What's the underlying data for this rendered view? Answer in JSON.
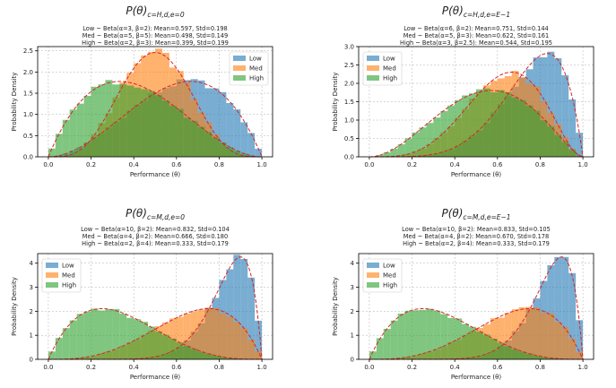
{
  "chart_data": [
    {
      "type": "histogram",
      "title": "P(θ)_{c=H,d,e=0}",
      "title_main": "P(θ)",
      "title_sub": "c=H,d,e=0",
      "subtitle_lines": [
        "Low ~ Beta(α=3, β=2): Mean=0.597, Std=0.198",
        "Med ~ Beta(α=5, β=5): Mean=0.498, Std=0.149",
        "High ~ Beta(α=2, β=3): Mean=0.399, Std=0.199"
      ],
      "xlabel": "Performance (θ)",
      "ylabel": "Probability Density",
      "xlim": [
        -0.05,
        1.05
      ],
      "ylim": [
        0,
        2.6
      ],
      "yticks": [
        "0.0",
        "0.5",
        "1.0",
        "1.5",
        "2.0",
        "2.5"
      ],
      "xticks": [
        "0.0",
        "0.2",
        "0.4",
        "0.6",
        "0.8",
        "1.0"
      ],
      "grid": true,
      "legend_position": "upper-right",
      "series": [
        {
          "name": "Low",
          "color": "#1f77b4",
          "alpha": 3,
          "beta": 2
        },
        {
          "name": "Med",
          "color": "#ff7f0e",
          "alpha": 5,
          "beta": 5
        },
        {
          "name": "High",
          "color": "#2ca02c",
          "alpha": 2,
          "beta": 3
        }
      ]
    },
    {
      "type": "histogram",
      "title": "P(θ)_{c=H,d,e=E−1}",
      "title_main": "P(θ)",
      "title_sub": "c=H,d,e=E−1",
      "subtitle_lines": [
        "Low ~ Beta(α=6, β=2): Mean=0.751, Std=0.144",
        "Med ~ Beta(α=5, β=3): Mean=0.622, Std=0.161",
        "High ~ Beta(α=3, β=2.5): Mean=0.544, Std=0.195"
      ],
      "xlabel": "Performance (θ)",
      "ylabel": "Probability Density",
      "xlim": [
        -0.05,
        1.05
      ],
      "ylim": [
        0,
        3.0
      ],
      "yticks": [
        "0.0",
        "0.5",
        "1.0",
        "1.5",
        "2.0",
        "2.5",
        "3.0"
      ],
      "xticks": [
        "0.0",
        "0.2",
        "0.4",
        "0.6",
        "0.8",
        "1.0"
      ],
      "grid": true,
      "legend_position": "upper-left",
      "series": [
        {
          "name": "Low",
          "color": "#1f77b4",
          "alpha": 6,
          "beta": 2
        },
        {
          "name": "Med",
          "color": "#ff7f0e",
          "alpha": 5,
          "beta": 3
        },
        {
          "name": "High",
          "color": "#2ca02c",
          "alpha": 3,
          "beta": 2.5
        }
      ]
    },
    {
      "type": "histogram",
      "title": "P(θ)_{c=M,d,e=0}",
      "title_main": "P(θ)",
      "title_sub": "c=M,d,e=0",
      "subtitle_lines": [
        "Low ~ Beta(α=10, β=2): Mean=0.832, Std=0.104",
        "Med ~ Beta(α=4, β=2): Mean=0.666, Std=0.180",
        "High ~ Beta(α=2, β=4): Mean=0.333, Std=0.179"
      ],
      "xlabel": "Performance (θ)",
      "ylabel": "Probability Density",
      "xlim": [
        -0.05,
        1.05
      ],
      "ylim": [
        0,
        4.4
      ],
      "yticks": [
        "0",
        "1",
        "2",
        "3",
        "4"
      ],
      "xticks": [
        "0.0",
        "0.2",
        "0.4",
        "0.6",
        "0.8",
        "1.0"
      ],
      "grid": true,
      "legend_position": "upper-left",
      "series": [
        {
          "name": "Low",
          "color": "#1f77b4",
          "alpha": 10,
          "beta": 2
        },
        {
          "name": "Med",
          "color": "#ff7f0e",
          "alpha": 4,
          "beta": 2
        },
        {
          "name": "High",
          "color": "#2ca02c",
          "alpha": 2,
          "beta": 4
        }
      ]
    },
    {
      "type": "histogram",
      "title": "P(θ)_{c=M,d,e=E−1}",
      "title_main": "P(θ)",
      "title_sub": "c=M,d,e=E−1",
      "subtitle_lines": [
        "Low ~ Beta(α=10, β=2): Mean=0.833, Std=0.105",
        "Med ~ Beta(α=4, β=2): Mean=0.670, Std=0.178",
        "High ~ Beta(α=2, β=4): Mean=0.333, Std=0.179"
      ],
      "xlabel": "Performance (θ)",
      "ylabel": "Probability Density",
      "xlim": [
        -0.05,
        1.05
      ],
      "ylim": [
        0,
        4.4
      ],
      "yticks": [
        "0",
        "1",
        "2",
        "3",
        "4"
      ],
      "xticks": [
        "0.0",
        "0.2",
        "0.4",
        "0.6",
        "0.8",
        "1.0"
      ],
      "grid": true,
      "legend_position": "upper-left",
      "series": [
        {
          "name": "Low",
          "color": "#1f77b4",
          "alpha": 10,
          "beta": 2
        },
        {
          "name": "Med",
          "color": "#ff7f0e",
          "alpha": 4,
          "beta": 2
        },
        {
          "name": "High",
          "color": "#2ca02c",
          "alpha": 2,
          "beta": 4
        }
      ]
    }
  ],
  "bins": 30,
  "fit_line_color": "#d62728"
}
